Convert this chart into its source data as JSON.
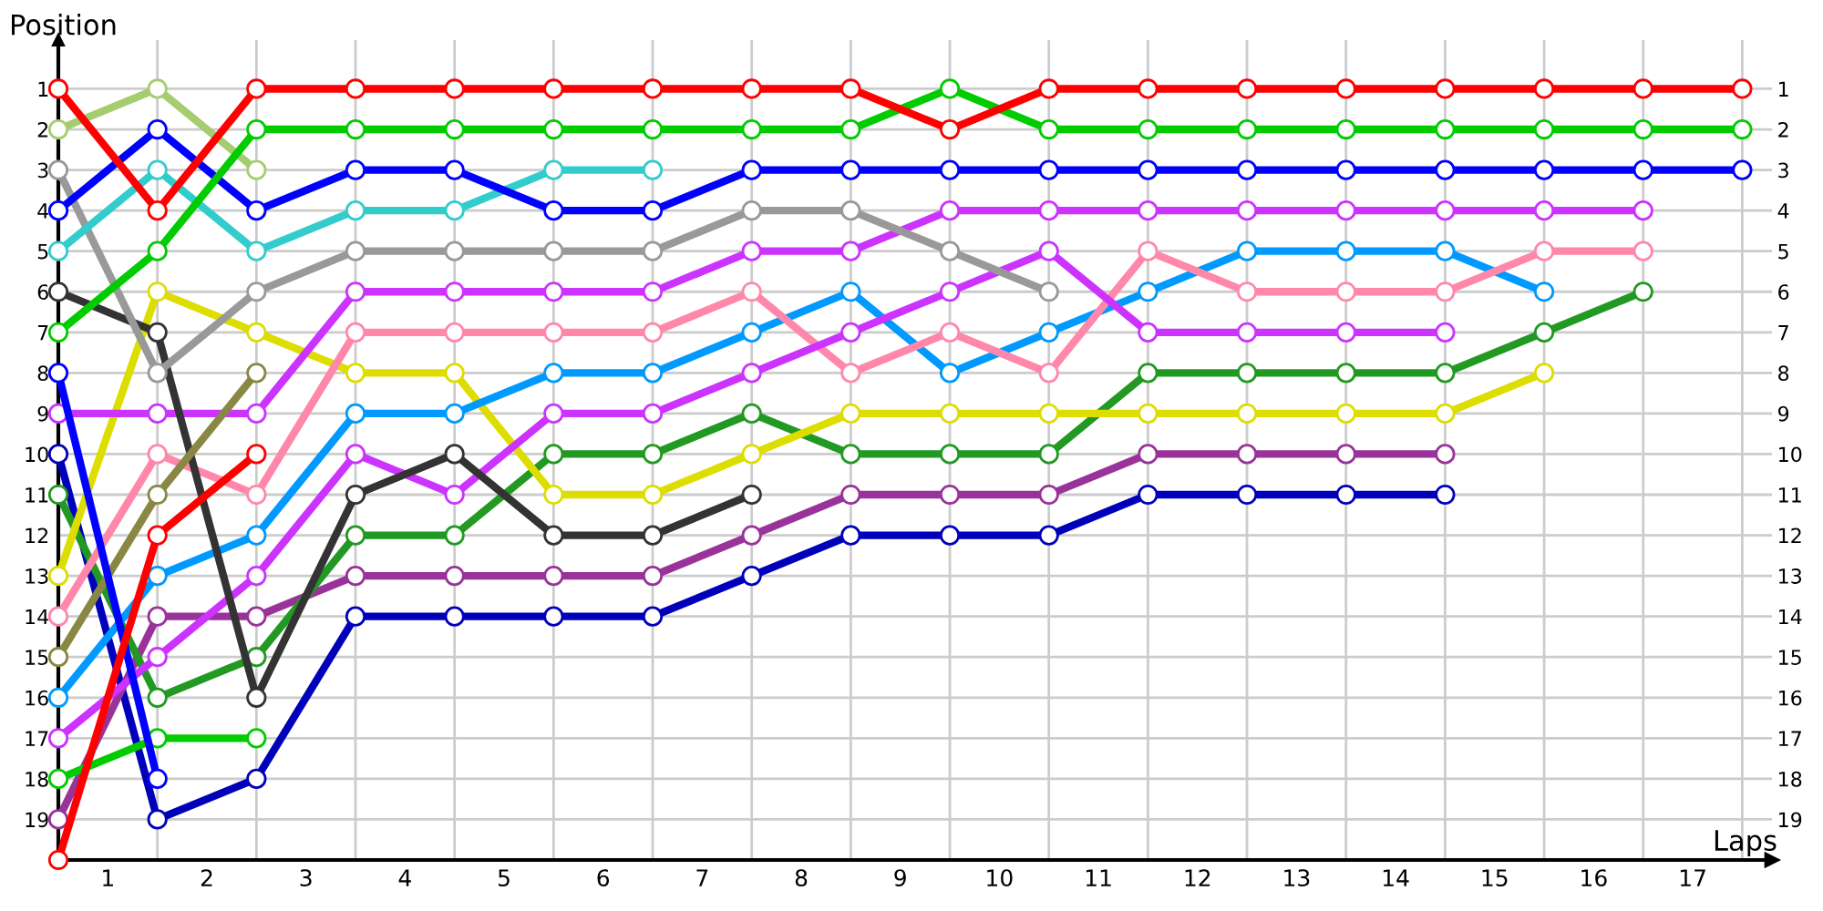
{
  "chart_data": {
    "type": "line",
    "xlabel": "Laps",
    "ylabel": "Position",
    "x": [
      0,
      1,
      2,
      3,
      4,
      5,
      6,
      7,
      8,
      9,
      10,
      11,
      12,
      13,
      14,
      15,
      16,
      17
    ],
    "xlim": [
      0,
      17.3
    ],
    "ylim": [
      20,
      -0.2
    ],
    "xticks": [
      {
        "value": 0,
        "label": null
      },
      {
        "value": 1,
        "label": null
      },
      {
        "value": 2,
        "label": null
      },
      {
        "value": 3,
        "label": null
      },
      {
        "value": 4,
        "label": null
      },
      {
        "value": 5,
        "label": null
      },
      {
        "value": 6,
        "label": null
      },
      {
        "value": 7,
        "label": null
      },
      {
        "value": 8,
        "label": null
      },
      {
        "value": 9,
        "label": null
      },
      {
        "value": 10,
        "label": null
      },
      {
        "value": 11,
        "label": null
      },
      {
        "value": 12,
        "label": null
      },
      {
        "value": 13,
        "label": null
      },
      {
        "value": 14,
        "label": null
      },
      {
        "value": 15,
        "label": null
      },
      {
        "value": 16,
        "label": null
      },
      {
        "value": 17,
        "label": null
      },
      {
        "value": 0.5,
        "label": "1"
      },
      {
        "value": 1.5,
        "label": "2"
      },
      {
        "value": 2.5,
        "label": "3"
      },
      {
        "value": 3.5,
        "label": "4"
      },
      {
        "value": 4.5,
        "label": "5"
      },
      {
        "value": 5.5,
        "label": "6"
      },
      {
        "value": 6.5,
        "label": "7"
      },
      {
        "value": 7.5,
        "label": "8"
      },
      {
        "value": 8.5,
        "label": "9"
      },
      {
        "value": 9.5,
        "label": "10"
      },
      {
        "value": 10.5,
        "label": "11"
      },
      {
        "value": 11.5,
        "label": "12"
      },
      {
        "value": 12.5,
        "label": "13"
      },
      {
        "value": 13.5,
        "label": "14"
      },
      {
        "value": 14.5,
        "label": "15"
      },
      {
        "value": 15.5,
        "label": "16"
      },
      {
        "value": 16.5,
        "label": "17"
      }
    ],
    "yticks": [
      1,
      2,
      3,
      4,
      5,
      6,
      7,
      8,
      9,
      10,
      11,
      12,
      13,
      14,
      15,
      16,
      17,
      18,
      19
    ],
    "y2lim": [
      20,
      -0.2
    ],
    "y2ticks": [
      1,
      2,
      3,
      4,
      5,
      6,
      7,
      8,
      9,
      10,
      11,
      12,
      13,
      14,
      15,
      16,
      17,
      18,
      19
    ],
    "grid": true,
    "marker": "circle",
    "line_style": "solid",
    "series": [
      {
        "color": "#0000bb",
        "values": [
          10,
          19,
          18,
          14,
          14,
          14,
          14,
          13,
          12,
          12,
          12,
          11,
          11,
          11,
          11,
          null,
          null,
          null
        ]
      },
      {
        "color": "#993399",
        "values": [
          19,
          14,
          14,
          13,
          13,
          13,
          13,
          12,
          11,
          11,
          11,
          10,
          10,
          10,
          10,
          null,
          null,
          null
        ]
      },
      {
        "color": "#229922",
        "values": [
          11,
          16,
          15,
          12,
          12,
          10,
          10,
          9,
          10,
          10,
          10,
          8,
          8,
          8,
          8,
          7,
          6,
          null
        ]
      },
      {
        "color": "#dddd00",
        "values": [
          13,
          6,
          7,
          8,
          8,
          11,
          11,
          10,
          9,
          9,
          9,
          9,
          9,
          9,
          9,
          8,
          null,
          null
        ]
      },
      {
        "color": "#0099ff",
        "values": [
          16,
          13,
          12,
          9,
          9,
          8,
          8,
          7,
          6,
          8,
          7,
          6,
          5,
          5,
          5,
          6,
          null,
          null
        ]
      },
      {
        "color": "#ff88aa",
        "values": [
          14,
          10,
          11,
          7,
          7,
          7,
          7,
          6,
          8,
          7,
          8,
          5,
          6,
          6,
          6,
          5,
          5,
          null
        ]
      },
      {
        "color": "#cc33ff",
        "values": [
          17,
          15,
          13,
          10,
          11,
          9,
          9,
          8,
          7,
          6,
          5,
          7,
          7,
          7,
          7,
          null,
          null,
          null
        ]
      },
      {
        "color": "#cc33ff",
        "values": [
          9,
          9,
          9,
          6,
          6,
          6,
          6,
          5,
          5,
          4,
          4,
          4,
          4,
          4,
          4,
          4,
          4,
          null
        ]
      },
      {
        "color": "#333333",
        "values": [
          6,
          7,
          16,
          11,
          10,
          12,
          12,
          11,
          null,
          null,
          null,
          null,
          null,
          null,
          null,
          null,
          null,
          null
        ]
      },
      {
        "color": "#999999",
        "values": [
          3,
          8,
          6,
          5,
          5,
          5,
          5,
          4,
          4,
          5,
          6,
          null,
          null,
          null,
          null,
          null,
          null,
          null
        ]
      },
      {
        "color": "#33cccc",
        "values": [
          5,
          3,
          5,
          4,
          4,
          3,
          3,
          null,
          null,
          null,
          null,
          null,
          null,
          null,
          null,
          null,
          null,
          null
        ]
      },
      {
        "color": "#888844",
        "values": [
          15,
          11,
          8,
          null,
          null,
          null,
          null,
          null,
          null,
          null,
          null,
          null,
          null,
          null,
          null,
          null,
          null,
          null
        ]
      },
      {
        "color": "#00cc00",
        "values": [
          18,
          17,
          17,
          null,
          null,
          null,
          null,
          null,
          null,
          null,
          null,
          null,
          null,
          null,
          null,
          null,
          null,
          null
        ]
      },
      {
        "color": "#0000ff",
        "values": [
          8,
          18,
          null,
          null,
          null,
          null,
          null,
          null,
          null,
          null,
          null,
          null,
          null,
          null,
          null,
          null,
          null,
          null
        ]
      },
      {
        "color": "#ff0000",
        "values": [
          20,
          12,
          10,
          null,
          null,
          null,
          null,
          null,
          null,
          null,
          null,
          null,
          null,
          null,
          null,
          null,
          null,
          null
        ]
      },
      {
        "color": "#a6cc70",
        "values": [
          2,
          1,
          3,
          null,
          null,
          null,
          null,
          null,
          null,
          null,
          null,
          null,
          null,
          null,
          null,
          null,
          null,
          null
        ]
      },
      {
        "color": "#0000ff",
        "values": [
          4,
          2,
          4,
          3,
          3,
          4,
          4,
          3,
          3,
          3,
          3,
          3,
          3,
          3,
          3,
          3,
          3,
          3
        ]
      },
      {
        "color": "#00cc00",
        "values": [
          7,
          5,
          2,
          2,
          2,
          2,
          2,
          2,
          2,
          1,
          2,
          2,
          2,
          2,
          2,
          2,
          2,
          2
        ]
      },
      {
        "color": "#ff0000",
        "values": [
          1,
          4,
          1,
          1,
          1,
          1,
          1,
          1,
          1,
          2,
          1,
          1,
          1,
          1,
          1,
          1,
          1,
          1
        ]
      }
    ]
  }
}
